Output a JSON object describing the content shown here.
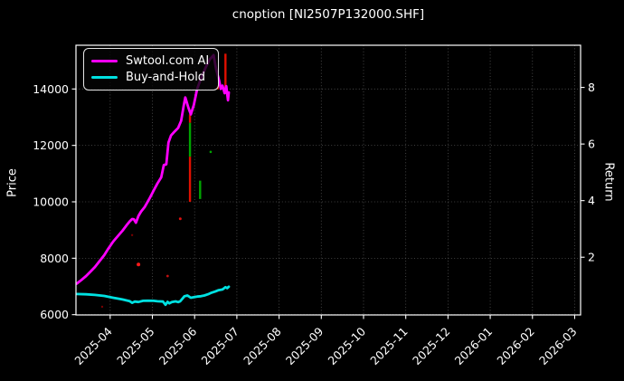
{
  "window": {
    "title": "cnoption [NI2507P132000.SHF]"
  },
  "chart_data": {
    "type": "line",
    "title": "cnoption [NI2507P132000.SHF]",
    "ylabel_left": "Price",
    "ylabel_right": "Return",
    "x_unit": "months since 2025-04 tick",
    "x_tick_labels": [
      "2025-04",
      "2025-05",
      "2025-06",
      "2025-07",
      "2025-08",
      "2025-09",
      "2025-10",
      "2025-11",
      "2025-12",
      "2026-01",
      "2026-02",
      "2026-03"
    ],
    "left_ticks": [
      6000,
      8000,
      10000,
      12000,
      14000
    ],
    "right_ticks": [
      2,
      4,
      6,
      8
    ],
    "xlim": [
      -0.81,
      11.14
    ],
    "ylim_price": [
      5990,
      15550
    ],
    "ylim_return": [
      -0.04,
      9.49
    ],
    "grid": "dotted",
    "legend_position": "upper-left",
    "background": "#000000",
    "series": [
      {
        "name": "Swtool.com AI",
        "color": "#ff00ff",
        "axis": "price",
        "points": [
          [
            -0.79,
            7100
          ],
          [
            -0.68,
            7230
          ],
          [
            -0.57,
            7370
          ],
          [
            -0.47,
            7520
          ],
          [
            -0.36,
            7690
          ],
          [
            -0.25,
            7900
          ],
          [
            -0.14,
            8110
          ],
          [
            -0.04,
            8350
          ],
          [
            0.07,
            8590
          ],
          [
            0.18,
            8780
          ],
          [
            0.29,
            8975
          ],
          [
            0.39,
            9170
          ],
          [
            0.46,
            9300
          ],
          [
            0.52,
            9390
          ],
          [
            0.56,
            9380
          ],
          [
            0.61,
            9260
          ],
          [
            0.67,
            9500
          ],
          [
            0.73,
            9650
          ],
          [
            0.82,
            9820
          ],
          [
            0.93,
            10110
          ],
          [
            1.03,
            10400
          ],
          [
            1.12,
            10650
          ],
          [
            1.21,
            10870
          ],
          [
            1.27,
            11300
          ],
          [
            1.33,
            11330
          ],
          [
            1.38,
            12100
          ],
          [
            1.44,
            12350
          ],
          [
            1.53,
            12500
          ],
          [
            1.61,
            12620
          ],
          [
            1.68,
            12870
          ],
          [
            1.74,
            13400
          ],
          [
            1.78,
            13700
          ],
          [
            1.85,
            13350
          ],
          [
            1.91,
            13100
          ],
          [
            1.98,
            13430
          ],
          [
            2.06,
            14000
          ],
          [
            2.17,
            14450
          ],
          [
            2.28,
            14820
          ],
          [
            2.36,
            15050
          ],
          [
            2.45,
            15200
          ],
          [
            2.51,
            14700
          ],
          [
            2.58,
            14300
          ],
          [
            2.62,
            14000
          ],
          [
            2.66,
            14120
          ],
          [
            2.71,
            13850
          ],
          [
            2.75,
            14100
          ],
          [
            2.79,
            13600
          ],
          [
            2.81,
            13880
          ]
        ]
      },
      {
        "name": "Buy-and-Hold",
        "color": "#00e1e1",
        "axis": "price",
        "points": [
          [
            -0.79,
            6730
          ],
          [
            -0.57,
            6720
          ],
          [
            -0.36,
            6700
          ],
          [
            -0.14,
            6665
          ],
          [
            0.07,
            6600
          ],
          [
            0.29,
            6540
          ],
          [
            0.46,
            6480
          ],
          [
            0.52,
            6420
          ],
          [
            0.58,
            6465
          ],
          [
            0.67,
            6450
          ],
          [
            0.78,
            6490
          ],
          [
            0.89,
            6495
          ],
          [
            1.03,
            6490
          ],
          [
            1.12,
            6475
          ],
          [
            1.25,
            6465
          ],
          [
            1.31,
            6350
          ],
          [
            1.36,
            6455
          ],
          [
            1.4,
            6400
          ],
          [
            1.46,
            6445
          ],
          [
            1.55,
            6470
          ],
          [
            1.61,
            6445
          ],
          [
            1.66,
            6475
          ],
          [
            1.76,
            6655
          ],
          [
            1.83,
            6680
          ],
          [
            1.91,
            6600
          ],
          [
            1.98,
            6620
          ],
          [
            2.06,
            6640
          ],
          [
            2.15,
            6655
          ],
          [
            2.23,
            6680
          ],
          [
            2.32,
            6725
          ],
          [
            2.4,
            6780
          ],
          [
            2.49,
            6820
          ],
          [
            2.57,
            6870
          ],
          [
            2.66,
            6890
          ],
          [
            2.73,
            6975
          ],
          [
            2.77,
            6940
          ],
          [
            2.81,
            6990
          ]
        ]
      }
    ],
    "event_bars": [
      {
        "x": 1.89,
        "from": 13100,
        "to": 12800,
        "color": "#e01000"
      },
      {
        "x": 1.89,
        "from": 12800,
        "to": 11600,
        "color": "#00a400"
      },
      {
        "x": 1.89,
        "from": 11600,
        "to": 10000,
        "color": "#e01000"
      },
      {
        "x": 2.13,
        "from": 10750,
        "to": 10100,
        "color": "#00a400"
      },
      {
        "x": 2.55,
        "from": 14120,
        "to": 13990,
        "color": "#e01000"
      },
      {
        "x": 2.73,
        "from": 15250,
        "to": 13950,
        "color": "#e01000"
      }
    ],
    "scatter_dots": [
      {
        "x": 0.52,
        "y": 8820,
        "color": "#7a0000",
        "r": 1.2
      },
      {
        "x": 0.67,
        "y": 7780,
        "color": "#ff1a1a",
        "r": 2.0
      },
      {
        "x": 1.36,
        "y": 7370,
        "color": "#c01010",
        "r": 1.4
      },
      {
        "x": 1.66,
        "y": 9400,
        "color": "#e01010",
        "r": 1.5
      },
      {
        "x": -0.19,
        "y": 6280,
        "color": "#7a0000",
        "r": 1.2
      },
      {
        "x": 2.38,
        "y": 11770,
        "color": "#00a400",
        "r": 1.3
      }
    ],
    "style": {
      "text_color": "#ffffff",
      "spine_color": "#ffffff",
      "grid_color": "#9a9a9a",
      "line_width": 2.8
    }
  }
}
